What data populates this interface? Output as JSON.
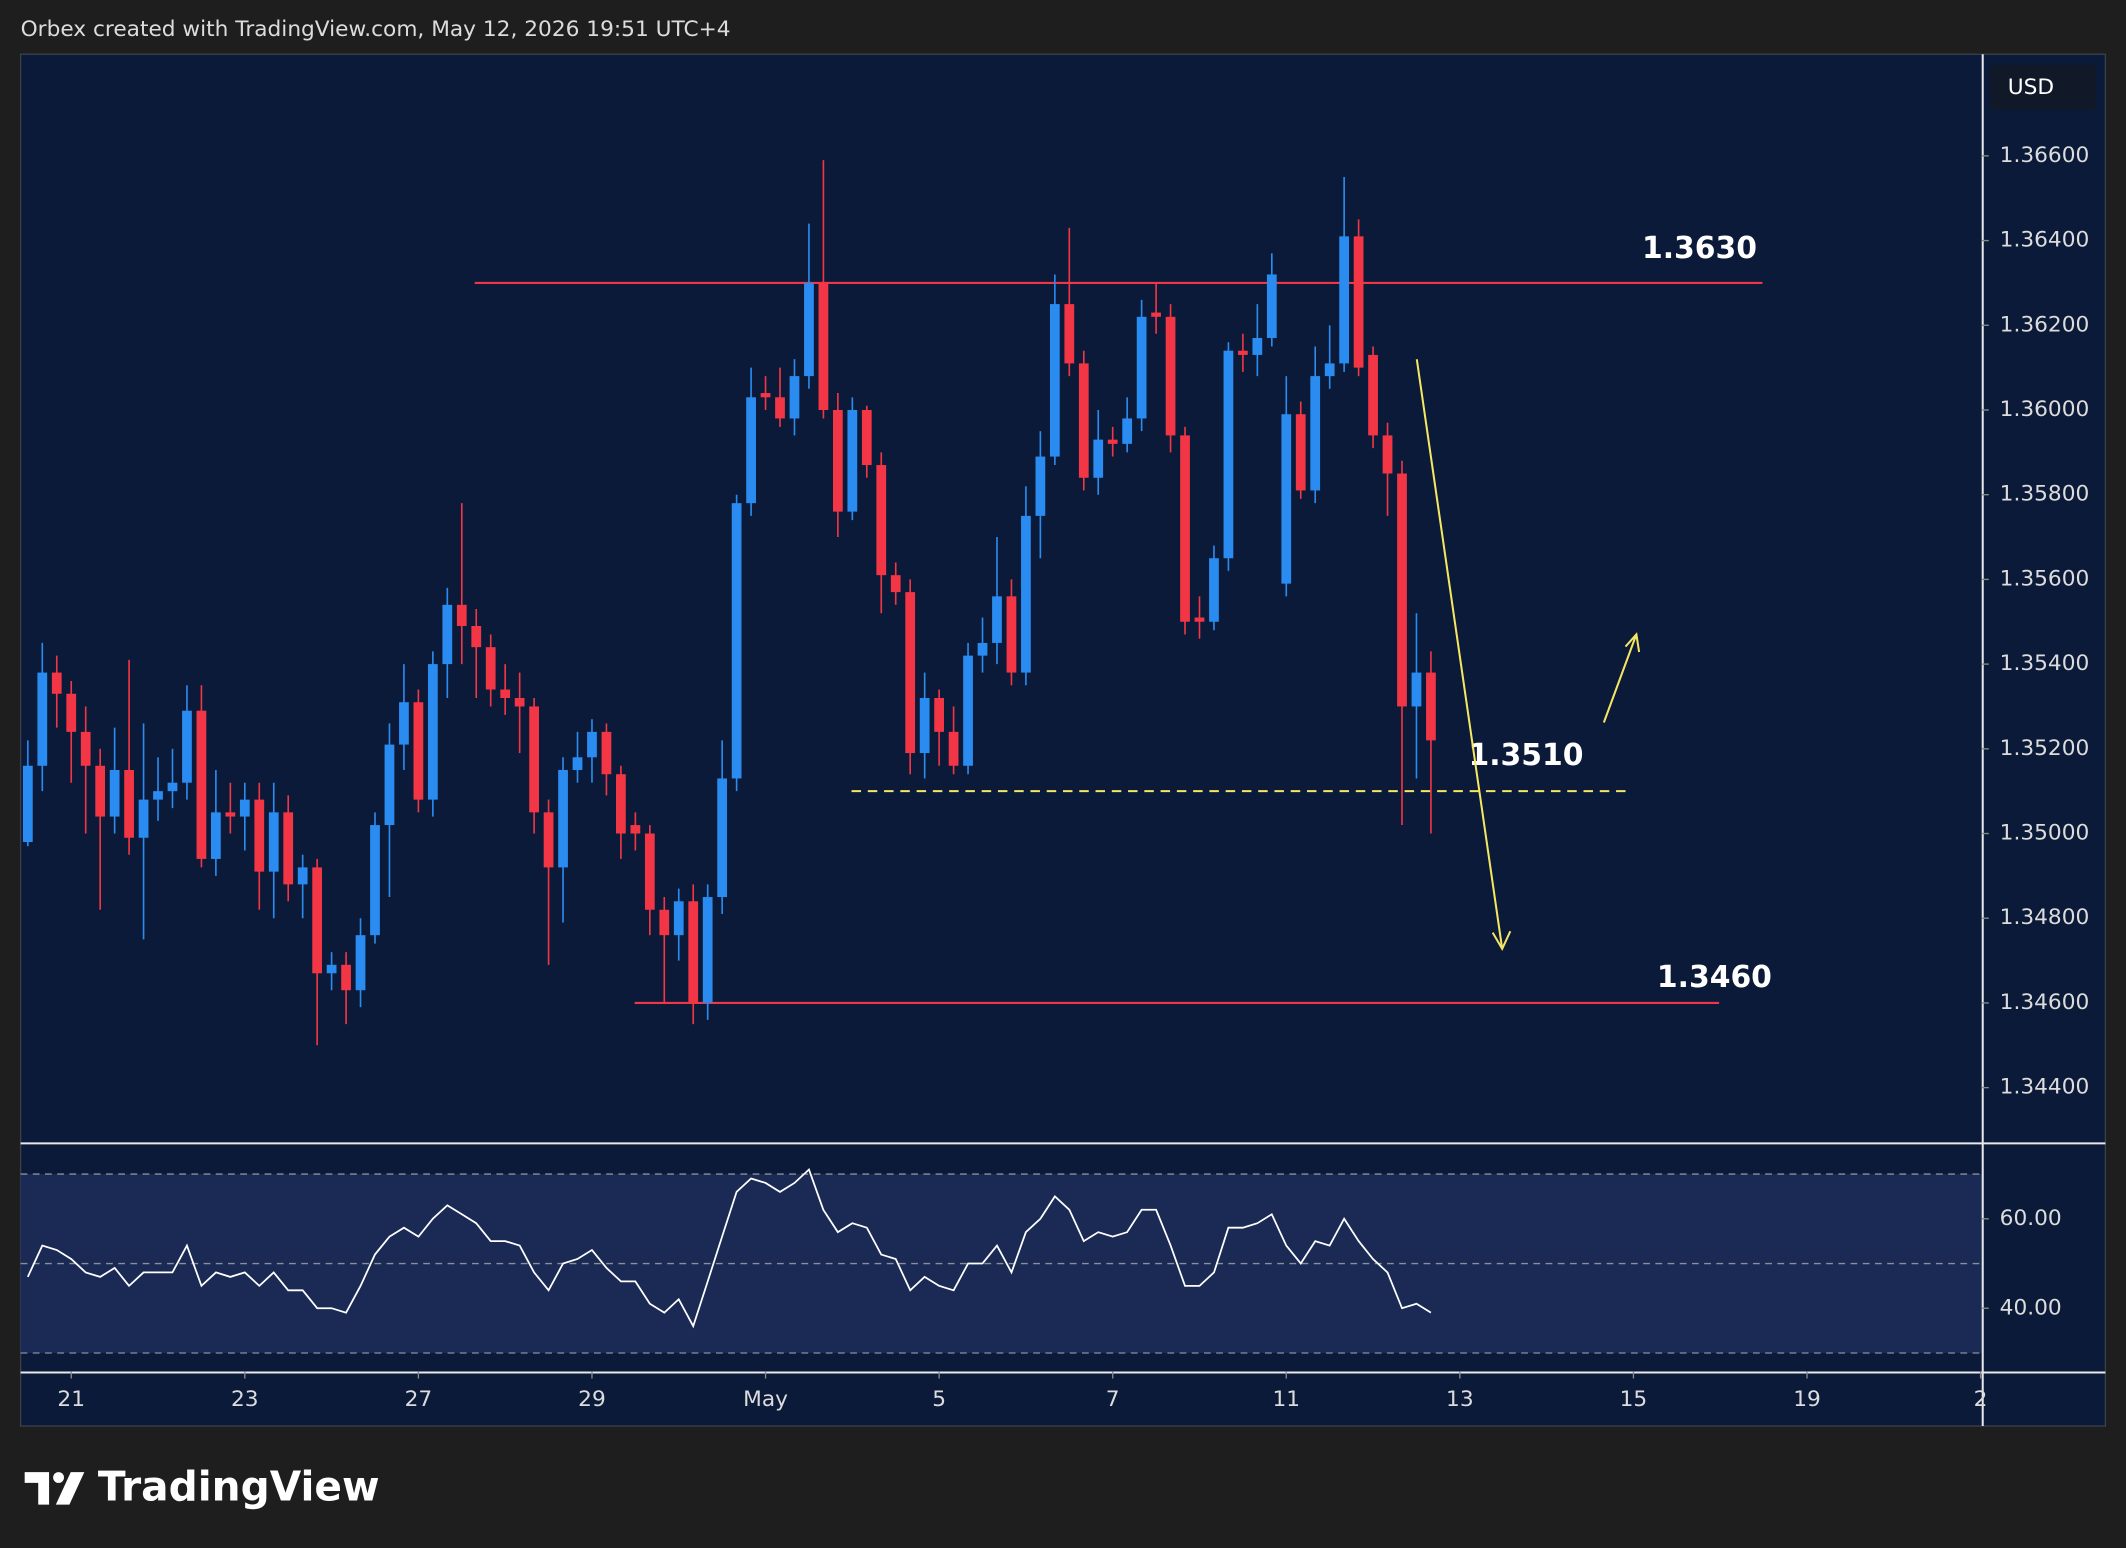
{
  "header": "Orbex created with TradingView.com, May 12, 2026 19:51 UTC+4",
  "brand": "TradingView",
  "chart_data": [
    {
      "type": "candlestick",
      "currency": "USD",
      "up_color": "#2a8cf0",
      "down_color": "#f23645",
      "open": [
        1.3498,
        1.3516,
        1.3538,
        1.3533,
        1.3524,
        1.3516,
        1.3504,
        1.3515,
        1.3499,
        1.3508,
        1.351,
        1.3512,
        1.3529,
        1.3494,
        1.3505,
        1.3504,
        1.3508,
        1.3491,
        1.3505,
        1.3488,
        1.3492,
        1.3467,
        1.3469,
        1.3463,
        1.3476,
        1.3502,
        1.3521,
        1.3531,
        1.3508,
        1.354,
        1.3554,
        1.3549,
        1.3544,
        1.3534,
        1.3532,
        1.353,
        1.3505,
        1.3492,
        1.3515,
        1.3518,
        1.3524,
        1.3514,
        1.3502,
        1.35,
        1.3482,
        1.3476,
        1.3484,
        1.346,
        1.3485,
        1.3513,
        1.3578,
        1.3604,
        1.3603,
        1.3598,
        1.3608,
        1.363,
        1.36,
        1.3576,
        1.36,
        1.3587,
        1.3561,
        1.3557,
        1.3519,
        1.3532,
        1.3524,
        1.3516,
        1.3542,
        1.3545,
        1.3556,
        1.3538,
        1.3575,
        1.3589,
        1.3625,
        1.3611,
        1.3584,
        1.3593,
        1.3592,
        1.3598,
        1.3623,
        1.3622,
        1.3594,
        1.3551,
        1.355,
        1.3565,
        1.3614,
        1.3613,
        1.3617,
        1.3559,
        1.3599,
        1.3581,
        1.3608,
        1.3611,
        1.3641,
        1.3613,
        1.3594,
        1.3585,
        1.353,
        1.3538
      ],
      "high": [
        1.3522,
        1.3545,
        1.3542,
        1.3536,
        1.353,
        1.352,
        1.3525,
        1.3541,
        1.3526,
        1.3518,
        1.352,
        1.3535,
        1.3535,
        1.3515,
        1.3512,
        1.3512,
        1.3512,
        1.3512,
        1.3509,
        1.3495,
        1.3494,
        1.3472,
        1.3472,
        1.348,
        1.3505,
        1.3526,
        1.354,
        1.3534,
        1.3543,
        1.3558,
        1.3578,
        1.3553,
        1.3547,
        1.354,
        1.3538,
        1.3532,
        1.3508,
        1.3518,
        1.3524,
        1.3527,
        1.3526,
        1.3516,
        1.3505,
        1.3502,
        1.3485,
        1.3487,
        1.3488,
        1.3488,
        1.3522,
        1.358,
        1.361,
        1.3608,
        1.361,
        1.3612,
        1.3644,
        1.3659,
        1.3604,
        1.3603,
        1.3601,
        1.359,
        1.3564,
        1.356,
        1.3538,
        1.3534,
        1.353,
        1.3545,
        1.3551,
        1.357,
        1.356,
        1.3582,
        1.3595,
        1.3632,
        1.3643,
        1.3614,
        1.36,
        1.3596,
        1.3603,
        1.3626,
        1.363,
        1.3625,
        1.3596,
        1.3556,
        1.3568,
        1.3616,
        1.3618,
        1.3625,
        1.3637,
        1.3608,
        1.3602,
        1.3615,
        1.362,
        1.3655,
        1.3645,
        1.3615,
        1.3597,
        1.3588,
        1.3552,
        1.3543
      ],
      "low": [
        1.3497,
        1.351,
        1.3525,
        1.3512,
        1.35,
        1.3482,
        1.35,
        1.3495,
        1.3475,
        1.3503,
        1.3506,
        1.3508,
        1.3492,
        1.349,
        1.35,
        1.3496,
        1.3482,
        1.348,
        1.3484,
        1.348,
        1.345,
        1.3463,
        1.3455,
        1.3459,
        1.3474,
        1.3485,
        1.3515,
        1.3505,
        1.3504,
        1.3532,
        1.354,
        1.3532,
        1.353,
        1.3528,
        1.3519,
        1.35,
        1.3469,
        1.3479,
        1.3512,
        1.3512,
        1.3509,
        1.3494,
        1.3496,
        1.3476,
        1.346,
        1.347,
        1.3455,
        1.3456,
        1.3481,
        1.351,
        1.3575,
        1.36,
        1.3596,
        1.3594,
        1.3605,
        1.3598,
        1.357,
        1.3574,
        1.3584,
        1.3552,
        1.3554,
        1.3514,
        1.3513,
        1.3516,
        1.3514,
        1.3514,
        1.3538,
        1.354,
        1.3535,
        1.3535,
        1.3565,
        1.3587,
        1.3608,
        1.3581,
        1.358,
        1.3589,
        1.359,
        1.3595,
        1.3618,
        1.359,
        1.3547,
        1.3546,
        1.3548,
        1.3562,
        1.3609,
        1.3608,
        1.3615,
        1.3556,
        1.3579,
        1.3578,
        1.3605,
        1.3609,
        1.3608,
        1.3591,
        1.3575,
        1.3502,
        1.3513,
        1.35
      ],
      "close": [
        1.3516,
        1.3538,
        1.3533,
        1.3524,
        1.3516,
        1.3504,
        1.3515,
        1.3499,
        1.3508,
        1.351,
        1.3512,
        1.3529,
        1.3494,
        1.3505,
        1.3504,
        1.3508,
        1.3491,
        1.3505,
        1.3488,
        1.3492,
        1.3467,
        1.3469,
        1.3463,
        1.3476,
        1.3502,
        1.3521,
        1.3531,
        1.3508,
        1.354,
        1.3554,
        1.3549,
        1.3544,
        1.3534,
        1.3532,
        1.353,
        1.3505,
        1.3492,
        1.3515,
        1.3518,
        1.3524,
        1.3514,
        1.35,
        1.35,
        1.3482,
        1.3476,
        1.3484,
        1.346,
        1.3485,
        1.3513,
        1.3578,
        1.3603,
        1.3603,
        1.3598,
        1.3608,
        1.363,
        1.36,
        1.3576,
        1.36,
        1.3587,
        1.3561,
        1.3557,
        1.3519,
        1.3532,
        1.3524,
        1.3516,
        1.3542,
        1.3545,
        1.3556,
        1.3538,
        1.3575,
        1.3589,
        1.3625,
        1.3611,
        1.3584,
        1.3593,
        1.3592,
        1.3598,
        1.3622,
        1.3622,
        1.3594,
        1.355,
        1.355,
        1.3565,
        1.3614,
        1.3613,
        1.3617,
        1.3632,
        1.3599,
        1.3581,
        1.3608,
        1.3611,
        1.3641,
        1.361,
        1.3594,
        1.3585,
        1.353,
        1.3538,
        1.3522
      ],
      "ylim": [
        1.3427,
        1.3684
      ],
      "yticks": [
        {
          "value": 1.366,
          "label": "1.36600"
        },
        {
          "value": 1.364,
          "label": "1.36400"
        },
        {
          "value": 1.362,
          "label": "1.36200"
        },
        {
          "value": 1.36,
          "label": "1.36000"
        },
        {
          "value": 1.358,
          "label": "1.35800"
        },
        {
          "value": 1.356,
          "label": "1.35600"
        },
        {
          "value": 1.354,
          "label": "1.35400"
        },
        {
          "value": 1.352,
          "label": "1.35200"
        },
        {
          "value": 1.35,
          "label": "1.35000"
        },
        {
          "value": 1.348,
          "label": "1.34800"
        },
        {
          "value": 1.346,
          "label": "1.34600"
        },
        {
          "value": 1.344,
          "label": "1.34400"
        }
      ],
      "xlim": [
        -0.5,
        135.1
      ],
      "xticks": [
        {
          "value": 3,
          "label": "21"
        },
        {
          "value": 15,
          "label": "23"
        },
        {
          "value": 27,
          "label": "27"
        },
        {
          "value": 39,
          "label": "29"
        },
        {
          "value": 51,
          "label": "May"
        },
        {
          "value": 63,
          "label": "5"
        },
        {
          "value": 75,
          "label": "7"
        },
        {
          "value": 87,
          "label": "11"
        },
        {
          "value": 99,
          "label": "13"
        },
        {
          "value": 111,
          "label": "15"
        },
        {
          "value": 123,
          "label": "19"
        },
        {
          "value": 135,
          "label": "2"
        }
      ],
      "levels": [
        {
          "value": 1.363,
          "label": "1.3630",
          "color": "#f23645",
          "style": "solid"
        },
        {
          "value": 1.351,
          "label": "1.3510",
          "color": "#f5e663",
          "style": "dashed"
        },
        {
          "value": 1.346,
          "label": "1.3460",
          "color": "#f23645",
          "style": "solid"
        }
      ]
    },
    {
      "type": "line",
      "color": "#ffffff",
      "values": [
        47,
        54,
        53,
        51,
        48,
        47,
        49,
        45,
        48,
        48,
        48,
        54,
        45,
        48,
        47,
        48,
        45,
        48,
        44,
        44,
        40,
        40,
        39,
        45,
        52,
        56,
        58,
        56,
        60,
        63,
        61,
        59,
        55,
        55,
        54,
        48,
        44,
        50,
        51,
        53,
        49,
        46,
        46,
        41,
        39,
        42,
        36,
        46,
        56,
        66,
        69,
        68,
        66,
        68,
        71,
        62,
        57,
        59,
        58,
        52,
        51,
        44,
        47,
        45,
        44,
        50,
        50,
        54,
        48,
        57,
        60,
        65,
        62,
        55,
        57,
        56,
        57,
        62,
        62,
        54,
        45,
        45,
        48,
        58,
        58,
        59,
        61,
        54,
        50,
        55,
        54,
        60,
        55,
        51,
        48,
        40,
        41,
        39
      ],
      "ylim": [
        25.8,
        76.4
      ],
      "yticks": [
        {
          "value": 60,
          "label": "60.00"
        },
        {
          "value": 40,
          "label": "40.00"
        }
      ],
      "levels": [
        30,
        50,
        70
      ]
    }
  ]
}
